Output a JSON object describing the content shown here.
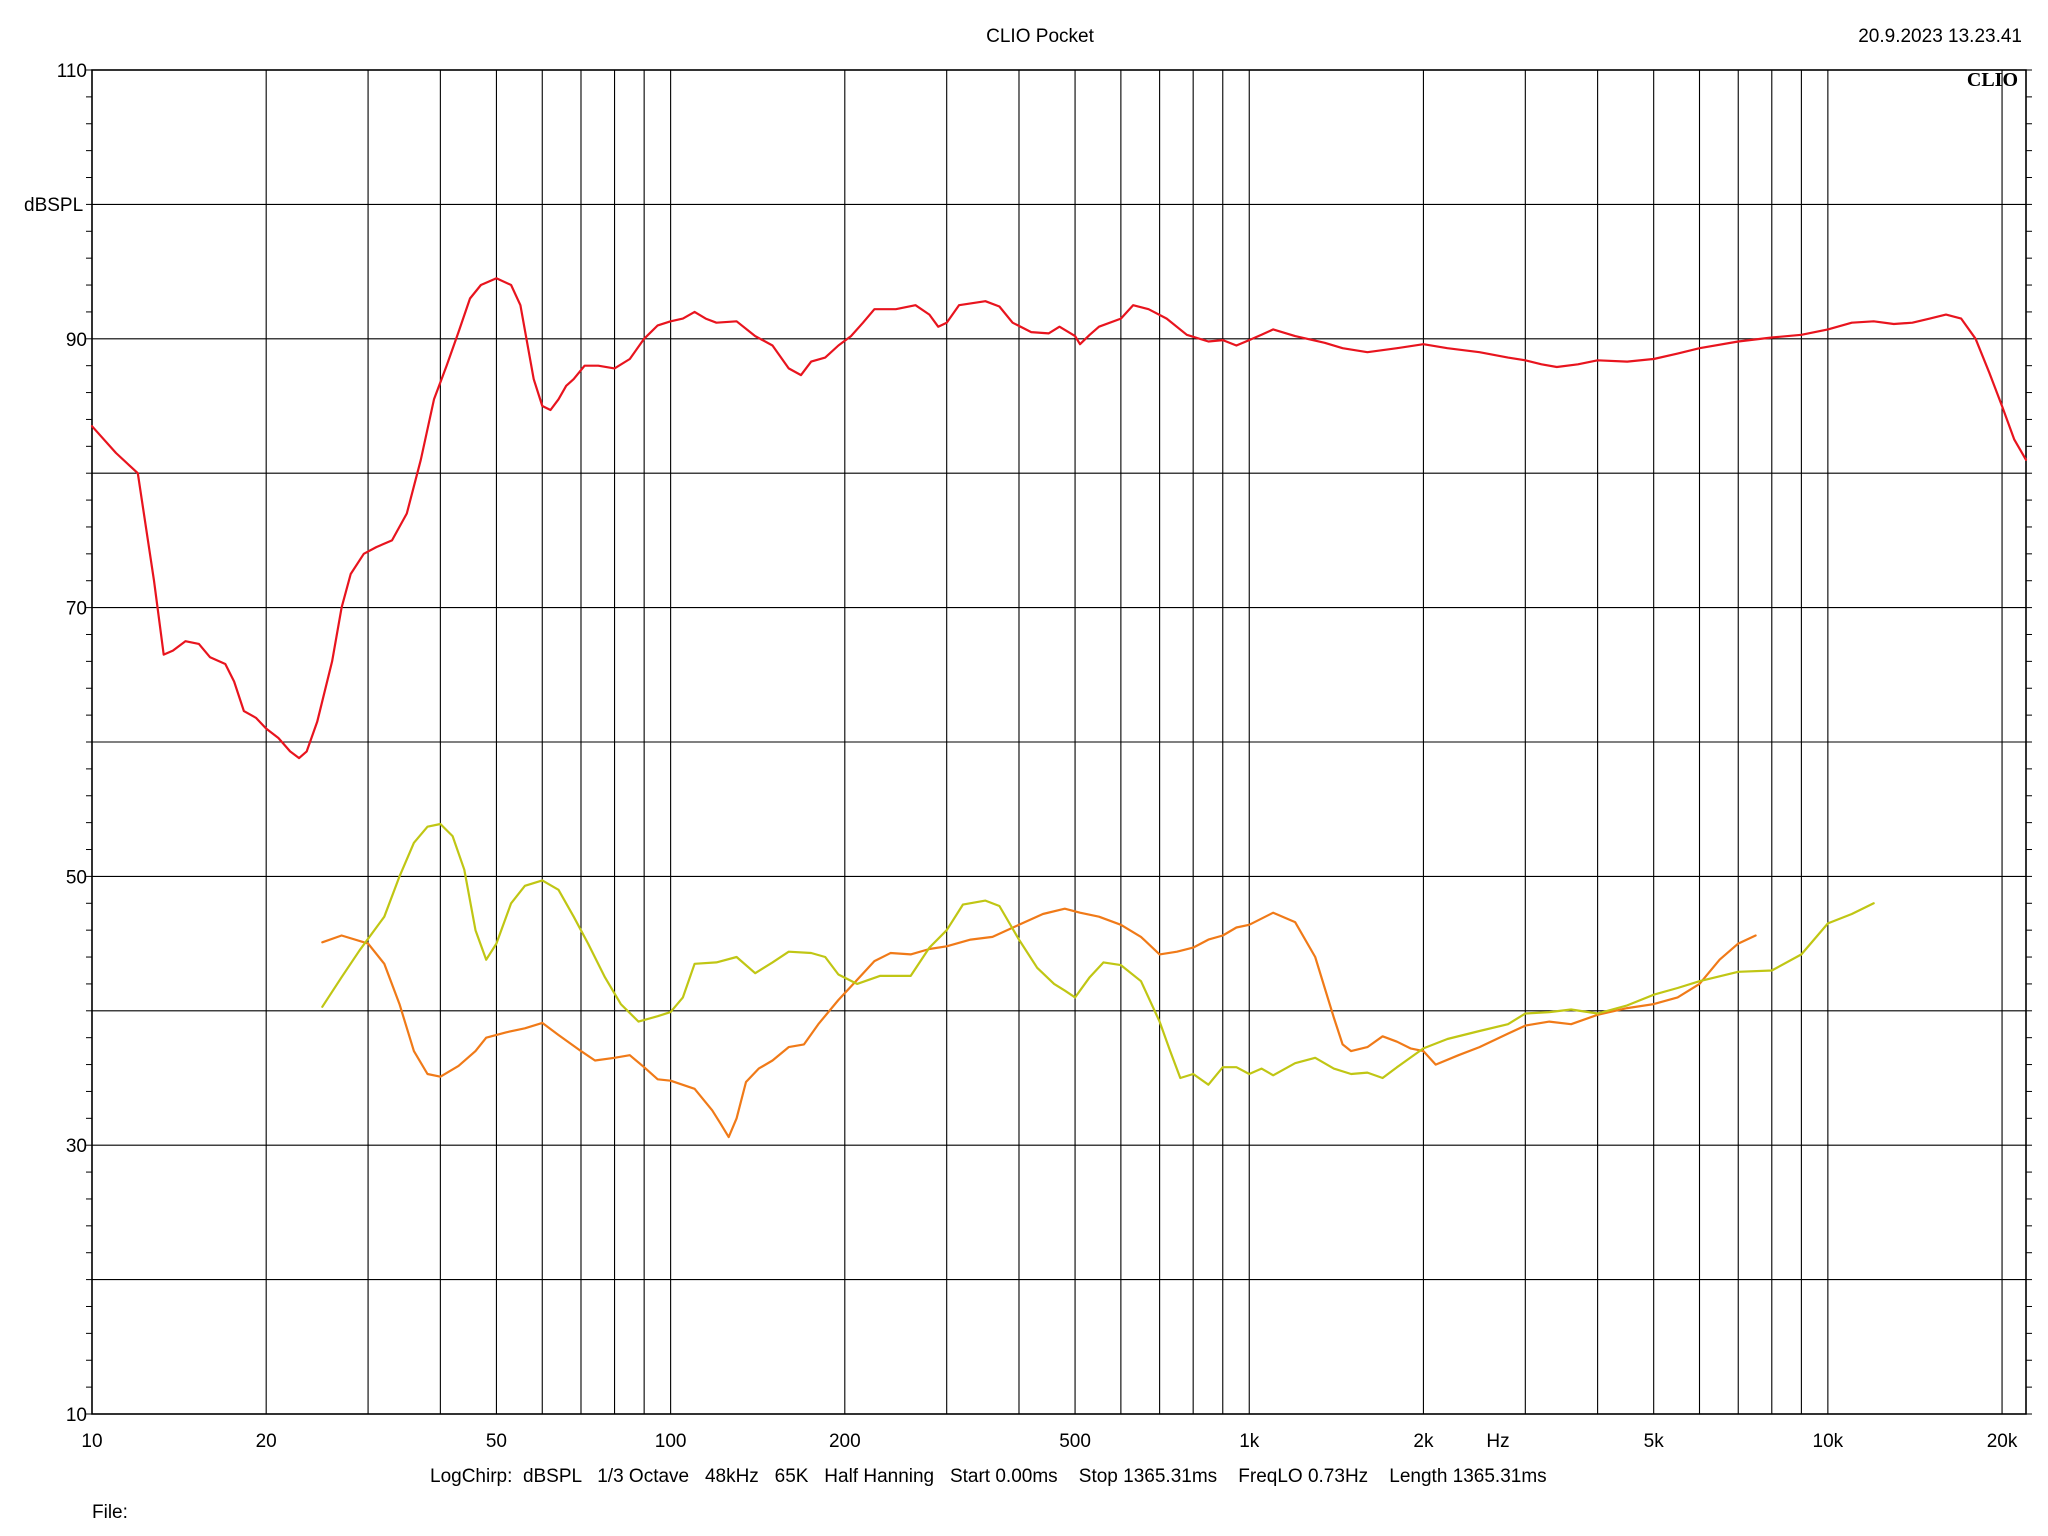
{
  "header": {
    "title": "CLIO Pocket",
    "timestamp": "20.9.2023 13.23.41",
    "brand_mark": "CLIO"
  },
  "footer": {
    "settings": "LogChirp:  dBSPL   1/3 Octave   48kHz   65K   Half Hanning   Start 0.00ms    Stop 1365.31ms    FreqLO 0.73Hz    Length 1365.31ms",
    "file_label": "File:"
  },
  "chart_data": {
    "type": "line",
    "title": "CLIO Pocket",
    "xlabel": "Hz",
    "ylabel": "dBSPL",
    "xscale": "log",
    "xlim": [
      10,
      22000
    ],
    "ylim": [
      10,
      110
    ],
    "grid": true,
    "legend": "none",
    "x_tick_labels": [
      {
        "value": 10,
        "label": "10"
      },
      {
        "value": 20,
        "label": "20"
      },
      {
        "value": 50,
        "label": "50"
      },
      {
        "value": 100,
        "label": "100"
      },
      {
        "value": 200,
        "label": "200"
      },
      {
        "value": 500,
        "label": "500"
      },
      {
        "value": 1000,
        "label": "1k"
      },
      {
        "value": 2000,
        "label": "2k"
      },
      {
        "value": 5000,
        "label": "5k"
      },
      {
        "value": 10000,
        "label": "10k"
      },
      {
        "value": 20000,
        "label": "20k"
      }
    ],
    "y_tick_labels": [
      {
        "value": 10,
        "label": "10"
      },
      {
        "value": 30,
        "label": "30"
      },
      {
        "value": 50,
        "label": "50"
      },
      {
        "value": 70,
        "label": "70"
      },
      {
        "value": 90,
        "label": "90"
      },
      {
        "value": 110,
        "label": "110"
      }
    ],
    "series": [
      {
        "color": "#e8141e",
        "points": [
          [
            10,
            83.5
          ],
          [
            11,
            81.5
          ],
          [
            12,
            80
          ],
          [
            12.8,
            72
          ],
          [
            13.3,
            66.5
          ],
          [
            13.8,
            66.8
          ],
          [
            14.5,
            67.5
          ],
          [
            15.3,
            67.3
          ],
          [
            16,
            66.3
          ],
          [
            17,
            65.8
          ],
          [
            17.6,
            64.5
          ],
          [
            18.3,
            62.3
          ],
          [
            19.2,
            61.8
          ],
          [
            20,
            61
          ],
          [
            21,
            60.3
          ],
          [
            22,
            59.3
          ],
          [
            22.8,
            58.8
          ],
          [
            23.5,
            59.3
          ],
          [
            24.5,
            61.5
          ],
          [
            26,
            66
          ],
          [
            27,
            70
          ],
          [
            28,
            72.5
          ],
          [
            29.5,
            74
          ],
          [
            31,
            74.5
          ],
          [
            33,
            75
          ],
          [
            35,
            77
          ],
          [
            37,
            81
          ],
          [
            39,
            85.5
          ],
          [
            41,
            88
          ],
          [
            43,
            90.5
          ],
          [
            45,
            93
          ],
          [
            47,
            94
          ],
          [
            50,
            94.5
          ],
          [
            53,
            94
          ],
          [
            55,
            92.5
          ],
          [
            58,
            87
          ],
          [
            60,
            85
          ],
          [
            62,
            84.7
          ],
          [
            64,
            85.5
          ],
          [
            66,
            86.5
          ],
          [
            68,
            87
          ],
          [
            71,
            88
          ],
          [
            75,
            88
          ],
          [
            80,
            87.8
          ],
          [
            85,
            88.5
          ],
          [
            90,
            90
          ],
          [
            95,
            91
          ],
          [
            100,
            91.3
          ],
          [
            105,
            91.5
          ],
          [
            110,
            92
          ],
          [
            115,
            91.5
          ],
          [
            120,
            91.2
          ],
          [
            130,
            91.3
          ],
          [
            140,
            90.2
          ],
          [
            150,
            89.5
          ],
          [
            160,
            87.8
          ],
          [
            168,
            87.3
          ],
          [
            175,
            88.3
          ],
          [
            185,
            88.6
          ],
          [
            195,
            89.5
          ],
          [
            205,
            90.2
          ],
          [
            215,
            91.2
          ],
          [
            225,
            92.2
          ],
          [
            245,
            92.2
          ],
          [
            265,
            92.5
          ],
          [
            280,
            91.8
          ],
          [
            290,
            90.9
          ],
          [
            300,
            91.2
          ],
          [
            315,
            92.5
          ],
          [
            350,
            92.8
          ],
          [
            370,
            92.4
          ],
          [
            390,
            91.2
          ],
          [
            420,
            90.5
          ],
          [
            450,
            90.4
          ],
          [
            470,
            90.9
          ],
          [
            500,
            90.2
          ],
          [
            510,
            89.6
          ],
          [
            530,
            90.3
          ],
          [
            550,
            90.9
          ],
          [
            600,
            91.5
          ],
          [
            630,
            92.5
          ],
          [
            670,
            92.2
          ],
          [
            720,
            91.5
          ],
          [
            780,
            90.3
          ],
          [
            850,
            89.8
          ],
          [
            900,
            89.9
          ],
          [
            950,
            89.5
          ],
          [
            1000,
            89.9
          ],
          [
            1050,
            90.3
          ],
          [
            1100,
            90.7
          ],
          [
            1200,
            90.2
          ],
          [
            1350,
            89.7
          ],
          [
            1450,
            89.3
          ],
          [
            1600,
            89
          ],
          [
            1800,
            89.3
          ],
          [
            2000,
            89.6
          ],
          [
            2200,
            89.3
          ],
          [
            2500,
            89
          ],
          [
            2800,
            88.6
          ],
          [
            3000,
            88.4
          ],
          [
            3200,
            88.1
          ],
          [
            3400,
            87.9
          ],
          [
            3700,
            88.1
          ],
          [
            4000,
            88.4
          ],
          [
            4500,
            88.3
          ],
          [
            5000,
            88.5
          ],
          [
            5500,
            88.9
          ],
          [
            6000,
            89.3
          ],
          [
            7000,
            89.8
          ],
          [
            8000,
            90.1
          ],
          [
            9000,
            90.3
          ],
          [
            10000,
            90.7
          ],
          [
            11000,
            91.2
          ],
          [
            12000,
            91.3
          ],
          [
            13000,
            91.1
          ],
          [
            14000,
            91.2
          ],
          [
            15000,
            91.5
          ],
          [
            16000,
            91.8
          ],
          [
            17000,
            91.5
          ],
          [
            18000,
            90
          ],
          [
            19000,
            87.5
          ],
          [
            20000,
            85
          ],
          [
            21000,
            82.5
          ],
          [
            22000,
            81
          ]
        ]
      },
      {
        "color": "#f07a18",
        "points": [
          [
            25,
            45.1
          ],
          [
            27,
            45.6
          ],
          [
            30,
            45
          ],
          [
            32,
            43.5
          ],
          [
            34,
            40.5
          ],
          [
            36,
            37
          ],
          [
            38,
            35.3
          ],
          [
            40,
            35.1
          ],
          [
            43,
            35.9
          ],
          [
            46,
            37
          ],
          [
            48,
            38
          ],
          [
            52,
            38.4
          ],
          [
            56,
            38.7
          ],
          [
            60,
            39.1
          ],
          [
            64,
            38.2
          ],
          [
            70,
            37
          ],
          [
            74,
            36.3
          ],
          [
            80,
            36.5
          ],
          [
            85,
            36.7
          ],
          [
            90,
            35.8
          ],
          [
            95,
            34.9
          ],
          [
            100,
            34.8
          ],
          [
            110,
            34.2
          ],
          [
            118,
            32.6
          ],
          [
            122,
            31.6
          ],
          [
            126,
            30.6
          ],
          [
            130,
            32
          ],
          [
            135,
            34.7
          ],
          [
            142,
            35.7
          ],
          [
            150,
            36.3
          ],
          [
            160,
            37.3
          ],
          [
            170,
            37.5
          ],
          [
            180,
            39
          ],
          [
            195,
            40.8
          ],
          [
            210,
            42.3
          ],
          [
            225,
            43.7
          ],
          [
            240,
            44.3
          ],
          [
            260,
            44.2
          ],
          [
            280,
            44.6
          ],
          [
            300,
            44.8
          ],
          [
            330,
            45.3
          ],
          [
            360,
            45.5
          ],
          [
            400,
            46.4
          ],
          [
            440,
            47.2
          ],
          [
            480,
            47.6
          ],
          [
            510,
            47.3
          ],
          [
            550,
            47
          ],
          [
            600,
            46.4
          ],
          [
            650,
            45.5
          ],
          [
            700,
            44.2
          ],
          [
            750,
            44.4
          ],
          [
            800,
            44.7
          ],
          [
            850,
            45.3
          ],
          [
            900,
            45.6
          ],
          [
            950,
            46.2
          ],
          [
            1000,
            46.4
          ],
          [
            1100,
            47.3
          ],
          [
            1200,
            46.6
          ],
          [
            1300,
            44
          ],
          [
            1400,
            39.5
          ],
          [
            1450,
            37.5
          ],
          [
            1500,
            37
          ],
          [
            1600,
            37.3
          ],
          [
            1700,
            38.1
          ],
          [
            1800,
            37.7
          ],
          [
            1900,
            37.2
          ],
          [
            2000,
            37
          ],
          [
            2100,
            36
          ],
          [
            2300,
            36.7
          ],
          [
            2500,
            37.3
          ],
          [
            2800,
            38.3
          ],
          [
            3000,
            38.9
          ],
          [
            3300,
            39.2
          ],
          [
            3600,
            39
          ],
          [
            4000,
            39.7
          ],
          [
            4500,
            40.2
          ],
          [
            5000,
            40.5
          ],
          [
            5500,
            41
          ],
          [
            6000,
            42
          ],
          [
            6500,
            43.8
          ],
          [
            7000,
            45
          ],
          [
            7500,
            45.6
          ]
        ]
      },
      {
        "color": "#c0c614",
        "points": [
          [
            25,
            40.3
          ],
          [
            27,
            42.5
          ],
          [
            29,
            44.5
          ],
          [
            32,
            47
          ],
          [
            34,
            50
          ],
          [
            36,
            52.5
          ],
          [
            38,
            53.7
          ],
          [
            40,
            53.9
          ],
          [
            42,
            53
          ],
          [
            44,
            50.5
          ],
          [
            46,
            46
          ],
          [
            48,
            43.8
          ],
          [
            50,
            45
          ],
          [
            53,
            48
          ],
          [
            56,
            49.3
          ],
          [
            60,
            49.7
          ],
          [
            64,
            49
          ],
          [
            68,
            47
          ],
          [
            72,
            45
          ],
          [
            77,
            42.5
          ],
          [
            82,
            40.5
          ],
          [
            88,
            39.2
          ],
          [
            95,
            39.6
          ],
          [
            100,
            39.9
          ],
          [
            105,
            41
          ],
          [
            110,
            43.5
          ],
          [
            120,
            43.6
          ],
          [
            130,
            44
          ],
          [
            140,
            42.8
          ],
          [
            150,
            43.6
          ],
          [
            160,
            44.4
          ],
          [
            175,
            44.3
          ],
          [
            185,
            44
          ],
          [
            195,
            42.7
          ],
          [
            210,
            42
          ],
          [
            230,
            42.6
          ],
          [
            260,
            42.6
          ],
          [
            280,
            44.7
          ],
          [
            300,
            46
          ],
          [
            320,
            47.9
          ],
          [
            350,
            48.2
          ],
          [
            370,
            47.8
          ],
          [
            400,
            45.3
          ],
          [
            430,
            43.2
          ],
          [
            460,
            42
          ],
          [
            480,
            41.5
          ],
          [
            500,
            41
          ],
          [
            530,
            42.5
          ],
          [
            560,
            43.6
          ],
          [
            600,
            43.4
          ],
          [
            650,
            42.2
          ],
          [
            700,
            39.2
          ],
          [
            730,
            37
          ],
          [
            760,
            35
          ],
          [
            800,
            35.3
          ],
          [
            850,
            34.5
          ],
          [
            900,
            35.8
          ],
          [
            950,
            35.8
          ],
          [
            1000,
            35.3
          ],
          [
            1050,
            35.7
          ],
          [
            1100,
            35.2
          ],
          [
            1200,
            36.1
          ],
          [
            1300,
            36.5
          ],
          [
            1400,
            35.7
          ],
          [
            1500,
            35.3
          ],
          [
            1600,
            35.4
          ],
          [
            1700,
            35
          ],
          [
            1800,
            35.8
          ],
          [
            2000,
            37.2
          ],
          [
            2200,
            37.9
          ],
          [
            2500,
            38.5
          ],
          [
            2800,
            39
          ],
          [
            3000,
            39.8
          ],
          [
            3300,
            39.9
          ],
          [
            3600,
            40.1
          ],
          [
            4000,
            39.8
          ],
          [
            4500,
            40.4
          ],
          [
            5000,
            41.2
          ],
          [
            5500,
            41.7
          ],
          [
            6000,
            42.2
          ],
          [
            7000,
            42.9
          ],
          [
            8000,
            43
          ],
          [
            9000,
            44.2
          ],
          [
            10000,
            46.5
          ],
          [
            11000,
            47.2
          ],
          [
            12000,
            48
          ]
        ]
      }
    ]
  }
}
